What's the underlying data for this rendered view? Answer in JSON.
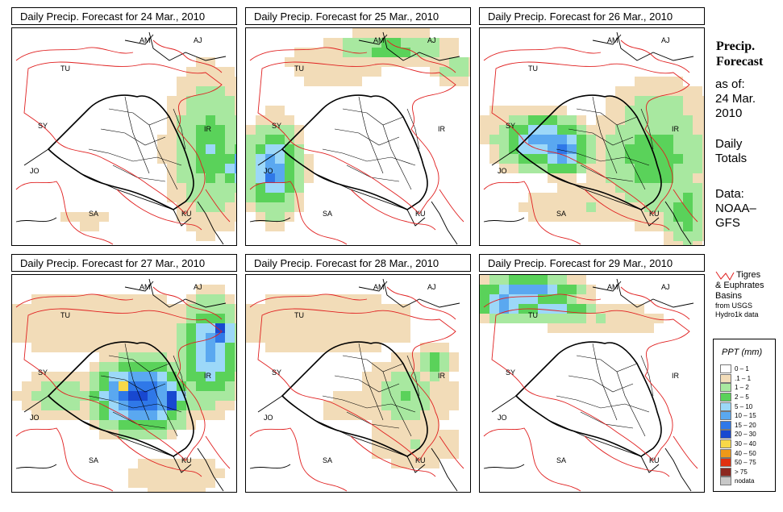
{
  "panels": [
    {
      "title": "Daily Precip. Forecast for  24 Mar., 2010"
    },
    {
      "title": "Daily Precip. Forecast for  25 Mar., 2010"
    },
    {
      "title": "Daily Precip. Forecast for  26 Mar., 2010"
    },
    {
      "title": "Daily Precip. Forecast for  27 Mar., 2010"
    },
    {
      "title": "Daily Precip. Forecast for  28 Mar., 2010"
    },
    {
      "title": "Daily Precip. Forecast for  29 Mar., 2010"
    }
  ],
  "map_labels": [
    "AM",
    "AJ",
    "TU",
    "SY",
    "IR",
    "JO",
    "SA",
    "KU"
  ],
  "sidebar": {
    "title_line1": "Precip.",
    "title_line2": "Forecast",
    "asof_line1": "as of:",
    "asof_line2": "24 Mar.",
    "asof_line3": "2010",
    "daily_line1": "Daily",
    "daily_line2": "Totals",
    "data_line1": "Data:",
    "data_line2": "NOAA–",
    "data_line3": "GFS"
  },
  "basin_legend": {
    "line1": "Tigres",
    "line2": "& Euphrates",
    "line3": "Basins",
    "line4": "from USGS",
    "line5": "Hydro1k data",
    "color": "#e02020"
  },
  "ppt_legend": {
    "title": "PPT (mm)",
    "items": [
      {
        "label": "0 – 1",
        "color": "#ffffff"
      },
      {
        "label": ".1 – 1",
        "color": "#f2dcb8"
      },
      {
        "label": "1 – 2",
        "color": "#a8e8a0"
      },
      {
        "label": "2 – 5",
        "color": "#5ad25a"
      },
      {
        "label": "5 – 10",
        "color": "#9cd8f8"
      },
      {
        "label": "10 – 15",
        "color": "#5aa8f0"
      },
      {
        "label": "15 – 20",
        "color": "#2f78e8"
      },
      {
        "label": "20 – 30",
        "color": "#1848d0"
      },
      {
        "label": "30 – 40",
        "color": "#f8d848"
      },
      {
        "label": "40 – 50",
        "color": "#f09818"
      },
      {
        "label": "50 – 75",
        "color": "#e03010"
      },
      {
        "label": "> 75",
        "color": "#8c2820"
      },
      {
        "label": "nodata",
        "color": "#c8c8c8"
      }
    ]
  }
}
